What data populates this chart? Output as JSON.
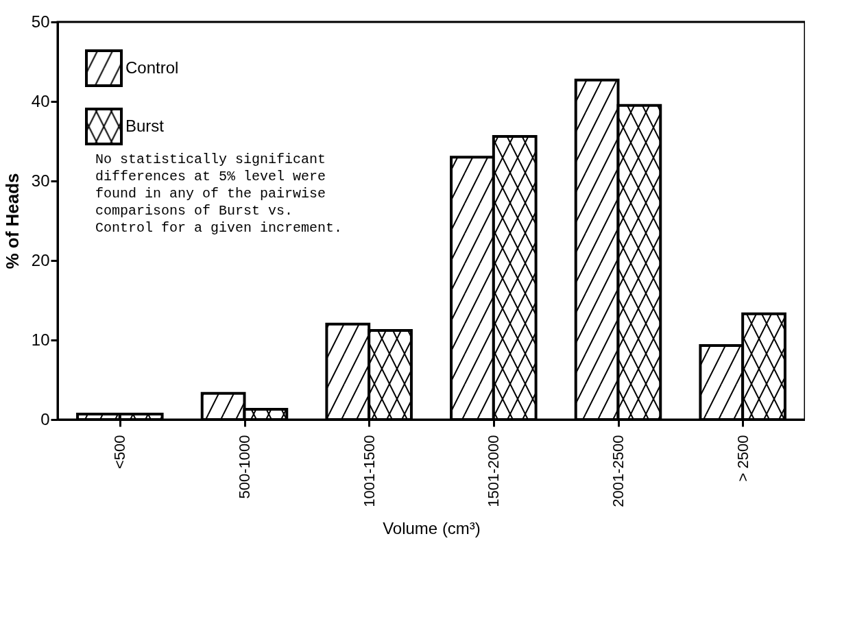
{
  "chart_data": {
    "type": "bar",
    "xlabel": "Volume (cm³)",
    "ylabel": "% of Heads",
    "categories": [
      "<500",
      "500-1000",
      "1001-1500",
      "1501-2000",
      "2001-2500",
      "> 2500"
    ],
    "series": [
      {
        "name": "Control",
        "color": "#000000",
        "values": [
          0.7,
          3.3,
          12.0,
          33.0,
          42.7,
          9.3
        ]
      },
      {
        "name": "Burst",
        "color": "#000000",
        "values": [
          0.7,
          1.3,
          11.2,
          35.6,
          39.5,
          13.3
        ]
      }
    ],
    "ylim": [
      0,
      50
    ],
    "yticks": [
      0,
      10,
      20,
      30,
      40,
      50
    ],
    "legend": "top left",
    "annotations": [
      "No statistically significant\ndifferences at 5% level were\nfound in any of the pairwise\ncomparisons of Burst vs.\nControl for a given increment."
    ]
  }
}
